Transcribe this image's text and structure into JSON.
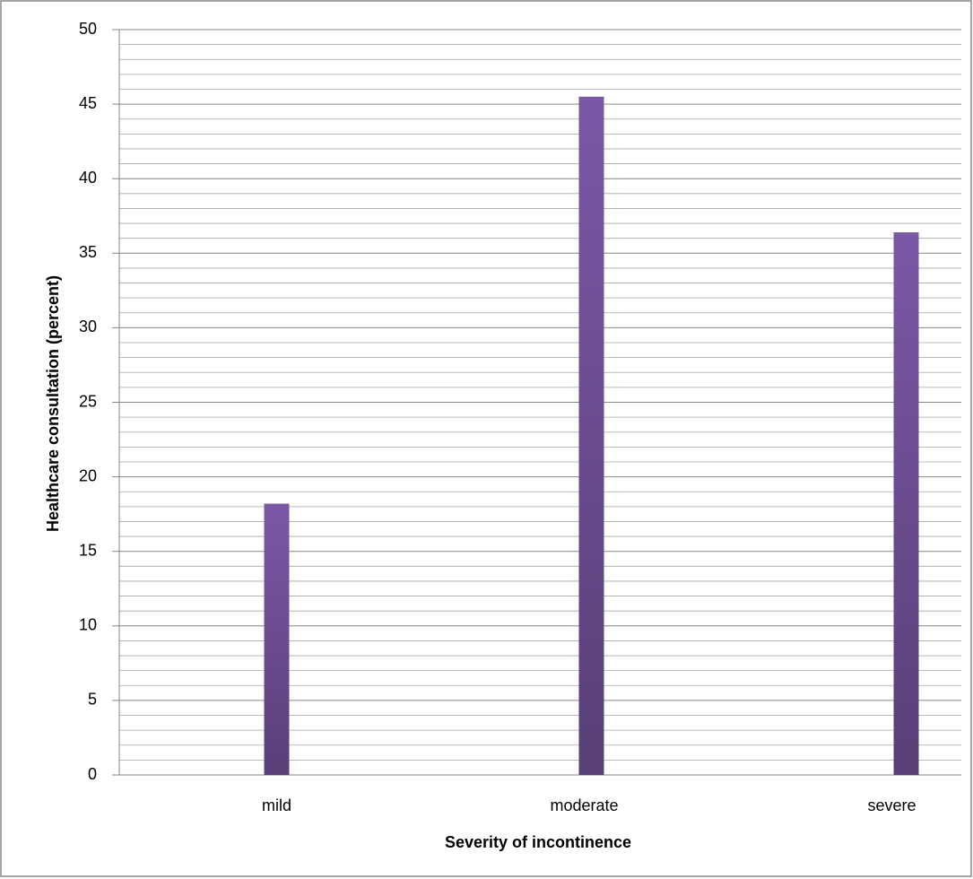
{
  "chart_data": {
    "type": "bar",
    "x_label": "Severity of incontinence",
    "y_label": "Healthcare consultation (percent)",
    "categories": [
      "mild",
      "moderate",
      "severe"
    ],
    "values": [
      18.2,
      45.5,
      36.4
    ],
    "color": "#7b58a6",
    "ylim": [
      0,
      50
    ],
    "yticks": [
      0,
      5,
      10,
      15,
      20,
      25,
      30,
      35,
      40,
      45,
      50
    ],
    "minor_yticks": [
      1,
      2,
      3,
      4,
      6,
      7,
      8,
      9,
      11,
      12,
      13,
      14,
      16,
      17,
      18,
      19,
      21,
      22,
      23,
      24,
      26,
      27,
      28,
      29,
      31,
      32,
      33,
      34,
      36,
      37,
      38,
      39,
      41,
      42,
      43,
      44,
      46,
      47,
      48,
      49
    ],
    "grid": true
  }
}
